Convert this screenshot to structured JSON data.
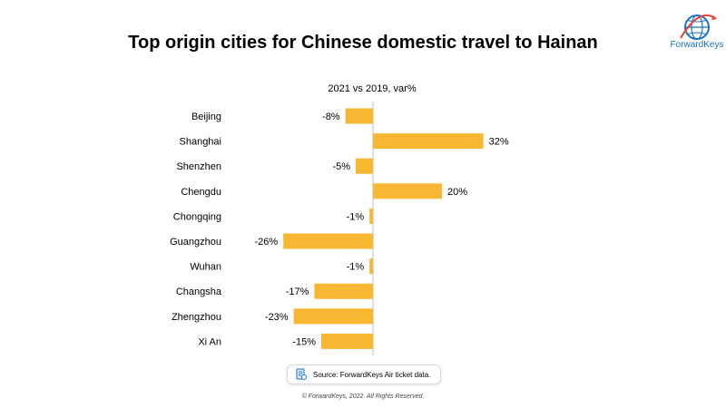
{
  "header": {
    "title": "Top origin cities for Chinese domestic travel to Hainan"
  },
  "logo": {
    "text": "ForwardKeys",
    "icon": "globe-logo-icon",
    "color": "#1a73c9"
  },
  "chart_data": {
    "type": "bar",
    "orientation": "horizontal",
    "subtitle": "2021 vs 2019, var%",
    "categories": [
      "Beijing",
      "Shanghai",
      "Shenzhen",
      "Chengdu",
      "Chongqing",
      "Guangzhou",
      "Wuhan",
      "Changsha",
      "Zhengzhou",
      "Xi An"
    ],
    "values": [
      -8,
      32,
      -5,
      20,
      -1,
      -26,
      -1,
      -17,
      -23,
      -15
    ],
    "data_labels": [
      "-8%",
      "32%",
      "-5%",
      "20%",
      "-1%",
      "-26%",
      "-1%",
      "-17%",
      "-23%",
      "-15%"
    ],
    "bar_color": "#f7b733",
    "axis_color": "#bfbfbf",
    "grid": false,
    "legend": "none"
  },
  "footer": {
    "source": "Source: ForwardKeys Air ticket data.",
    "source_icon": "document-icon",
    "copyright": "© ForwardKeys, 2022. All Rights Reserved."
  }
}
